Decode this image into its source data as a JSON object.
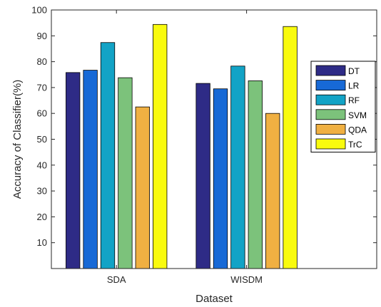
{
  "chart_data": {
    "type": "bar",
    "categories": [
      "SDA",
      "WISDM"
    ],
    "series": [
      {
        "name": "DT",
        "values": [
          75.8,
          71.6
        ]
      },
      {
        "name": "LR",
        "values": [
          76.7,
          69.5
        ]
      },
      {
        "name": "RF",
        "values": [
          87.4,
          78.3
        ]
      },
      {
        "name": "SVM",
        "values": [
          73.8,
          72.6
        ]
      },
      {
        "name": "QDA",
        "values": [
          62.5,
          60.0
        ]
      },
      {
        "name": "TrC",
        "values": [
          94.4,
          93.6
        ]
      }
    ],
    "colors": [
      "#2e2b86",
      "#1769d6",
      "#12a3c6",
      "#7cc27b",
      "#f0b042",
      "#f9fb0e"
    ],
    "xlabel": "Dataset",
    "ylabel": "Accuracy of Classifier(%)",
    "ylim": [
      0,
      100
    ],
    "yticks": [
      10,
      20,
      30,
      40,
      50,
      60,
      70,
      80,
      90,
      100
    ],
    "grid": false,
    "legend_position": "right"
  }
}
